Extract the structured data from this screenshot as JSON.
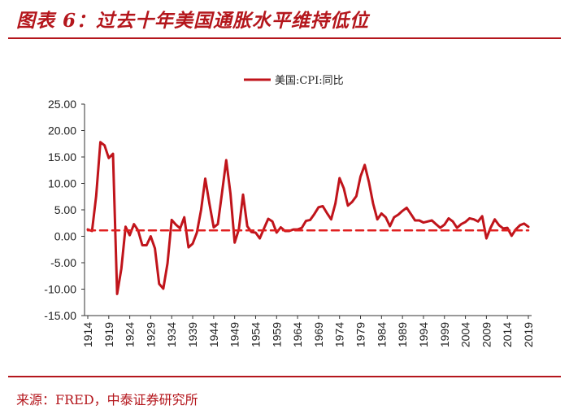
{
  "figure": {
    "title": "图表 6：过去十年美国通胀水平维持低位",
    "source": "来源：FRED，中泰证券研究所"
  },
  "colors": {
    "accent": "#b4161c",
    "series_line": "#c0141b",
    "threshold": "#e02020"
  },
  "chart_data": {
    "type": "line",
    "title": "",
    "xlabel": "",
    "ylabel": "",
    "legend": "top-center",
    "ylim": [
      -15,
      25
    ],
    "yticks": [
      "25.00",
      "20.00",
      "15.00",
      "10.00",
      "5.00",
      "0.00",
      "-5.00",
      "-10.00",
      "-15.00"
    ],
    "ytick_values": [
      25,
      20,
      15,
      10,
      5,
      0,
      -5,
      -10,
      -15
    ],
    "xlim": [
      1914,
      2019
    ],
    "xticks": [
      "1914",
      "1919",
      "1924",
      "1929",
      "1934",
      "1939",
      "1944",
      "1949",
      "1954",
      "1959",
      "1964",
      "1969",
      "1974",
      "1979",
      "1984",
      "1989",
      "1994",
      "1999",
      "2004",
      "2009",
      "2014",
      "2019"
    ],
    "series": [
      {
        "name": "美国:CPI:同比",
        "style": "solid",
        "x": [
          1914,
          1915,
          1916,
          1917,
          1918,
          1919,
          1920,
          1921,
          1922,
          1923,
          1924,
          1925,
          1926,
          1927,
          1928,
          1929,
          1930,
          1931,
          1932,
          1933,
          1934,
          1935,
          1936,
          1937,
          1938,
          1939,
          1940,
          1941,
          1942,
          1943,
          1944,
          1945,
          1946,
          1947,
          1948,
          1949,
          1950,
          1951,
          1952,
          1953,
          1954,
          1955,
          1956,
          1957,
          1958,
          1959,
          1960,
          1961,
          1962,
          1963,
          1964,
          1965,
          1966,
          1967,
          1968,
          1969,
          1970,
          1971,
          1972,
          1973,
          1974,
          1975,
          1976,
          1977,
          1978,
          1979,
          1980,
          1981,
          1982,
          1983,
          1984,
          1985,
          1986,
          1987,
          1988,
          1989,
          1990,
          1991,
          1992,
          1993,
          1994,
          1995,
          1996,
          1997,
          1998,
          1999,
          2000,
          2001,
          2002,
          2003,
          2004,
          2005,
          2006,
          2007,
          2008,
          2009,
          2010,
          2011,
          2012,
          2013,
          2014,
          2015,
          2016,
          2017,
          2018,
          2019
        ],
        "values": [
          1.3,
          1.0,
          7.6,
          17.8,
          17.2,
          14.8,
          15.6,
          -10.9,
          -6.1,
          1.8,
          0.2,
          2.3,
          1.1,
          -1.7,
          -1.7,
          0.0,
          -2.3,
          -9.0,
          -9.9,
          -5.1,
          3.1,
          2.2,
          1.5,
          3.6,
          -2.1,
          -1.4,
          0.7,
          5.0,
          10.9,
          6.1,
          1.7,
          2.3,
          8.3,
          14.4,
          8.1,
          -1.2,
          1.3,
          7.9,
          1.9,
          0.8,
          0.7,
          -0.4,
          1.5,
          3.3,
          2.8,
          0.7,
          1.7,
          1.0,
          1.0,
          1.3,
          1.3,
          1.6,
          2.9,
          3.1,
          4.2,
          5.5,
          5.7,
          4.4,
          3.2,
          6.2,
          11.0,
          9.1,
          5.8,
          6.5,
          7.6,
          11.3,
          13.5,
          10.3,
          6.2,
          3.2,
          4.3,
          3.6,
          1.9,
          3.6,
          4.1,
          4.8,
          5.4,
          4.2,
          3.0,
          3.0,
          2.6,
          2.8,
          3.0,
          2.3,
          1.6,
          2.2,
          3.4,
          2.8,
          1.6,
          2.3,
          2.7,
          3.4,
          3.2,
          2.8,
          3.8,
          -0.4,
          1.6,
          3.2,
          2.1,
          1.5,
          1.6,
          0.1,
          1.3,
          2.1,
          2.4,
          1.8
        ]
      },
      {
        "name": "",
        "style": "dashed",
        "x": [
          1914,
          2019
        ],
        "values": [
          1.1,
          1.1
        ]
      }
    ]
  }
}
